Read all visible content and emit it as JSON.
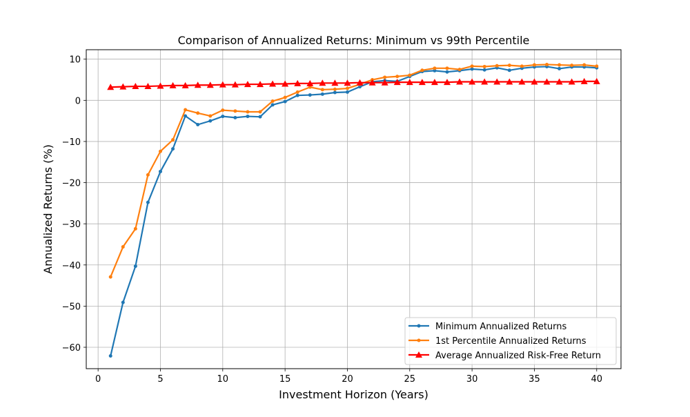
{
  "chart_data": {
    "type": "line",
    "title": "Comparison of Annualized Returns: Minimum vs 99th Percentile",
    "xlabel": "Investment Horizon (Years)",
    "ylabel": "Annualized Returns (%)",
    "xlim": [
      -0.95,
      41.95
    ],
    "ylim": [
      -65.2,
      12.3
    ],
    "xticks": [
      0,
      5,
      10,
      15,
      20,
      25,
      30,
      35,
      40
    ],
    "yticks": [
      10,
      0,
      -10,
      -20,
      -30,
      -40,
      -50,
      -60
    ],
    "grid": true,
    "legend_position": "lower right",
    "x": [
      1,
      2,
      3,
      4,
      5,
      6,
      7,
      8,
      9,
      10,
      11,
      12,
      13,
      14,
      15,
      16,
      17,
      18,
      19,
      20,
      21,
      22,
      23,
      24,
      25,
      26,
      27,
      28,
      29,
      30,
      31,
      32,
      33,
      34,
      35,
      36,
      37,
      38,
      39,
      40
    ],
    "series": [
      {
        "name": "Minimum Annualized Returns",
        "color": "#1f77b4",
        "marker": "circle",
        "values": [
          -62.1,
          -49.1,
          -40.3,
          -24.8,
          -17.3,
          -11.8,
          -3.8,
          -5.9,
          -5.0,
          -3.9,
          -4.2,
          -3.9,
          -4.0,
          -1.1,
          -0.3,
          1.2,
          1.3,
          1.5,
          1.9,
          2.0,
          3.3,
          4.5,
          4.8,
          4.6,
          5.8,
          7.0,
          7.2,
          6.9,
          7.2,
          7.6,
          7.4,
          7.9,
          7.3,
          7.8,
          8.1,
          8.2,
          7.7,
          8.1,
          8.1,
          7.9
        ]
      },
      {
        "name": "1st Percentile Annualized Returns",
        "color": "#ff7f0e",
        "marker": "circle",
        "values": [
          -42.9,
          -35.6,
          -31.2,
          -18.1,
          -12.4,
          -9.6,
          -2.3,
          -3.1,
          -3.8,
          -2.4,
          -2.6,
          -2.8,
          -2.8,
          -0.2,
          0.7,
          2.0,
          3.2,
          2.6,
          2.7,
          2.9,
          3.9,
          5.0,
          5.6,
          5.8,
          6.1,
          7.3,
          7.8,
          7.8,
          7.5,
          8.3,
          8.2,
          8.4,
          8.5,
          8.3,
          8.6,
          8.7,
          8.6,
          8.5,
          8.6,
          8.3
        ]
      },
      {
        "name": "Average Annualized Risk-Free Return",
        "color": "#ff0000",
        "marker": "triangle",
        "values": [
          3.2,
          3.3,
          3.4,
          3.4,
          3.5,
          3.6,
          3.6,
          3.7,
          3.7,
          3.8,
          3.8,
          3.9,
          3.9,
          4.0,
          4.0,
          4.1,
          4.1,
          4.2,
          4.2,
          4.2,
          4.3,
          4.3,
          4.3,
          4.4,
          4.4,
          4.4,
          4.4,
          4.4,
          4.5,
          4.5,
          4.5,
          4.5,
          4.5,
          4.5,
          4.5,
          4.5,
          4.5,
          4.5,
          4.6,
          4.6
        ]
      }
    ]
  }
}
